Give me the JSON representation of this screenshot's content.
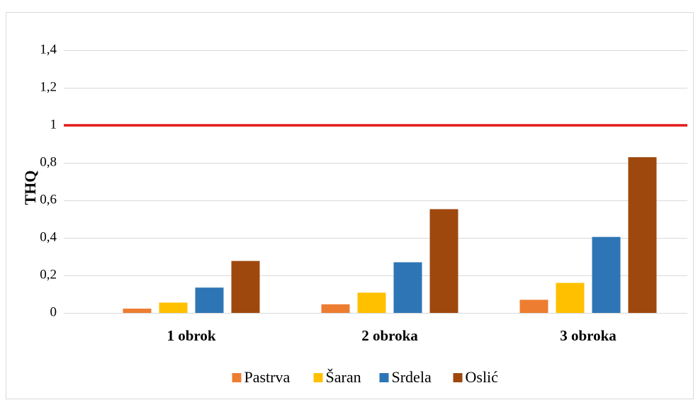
{
  "chart_data": {
    "type": "bar",
    "y_label": "THQ",
    "categories": [
      "1 obrok",
      "2 obroka",
      "3 obroka"
    ],
    "series": [
      {
        "name": "Pastrva",
        "color": "#ed7d31",
        "values": [
          0.023,
          0.046,
          0.07
        ]
      },
      {
        "name": "Šaran",
        "color": "#ffc000",
        "values": [
          0.055,
          0.108,
          0.16
        ]
      },
      {
        "name": "Srdela",
        "color": "#2e75b6",
        "values": [
          0.135,
          0.27,
          0.405
        ]
      },
      {
        "name": "Oslić",
        "color": "#9e480e",
        "values": [
          0.277,
          0.553,
          0.83
        ]
      }
    ],
    "ylim": [
      0,
      1.5
    ],
    "yticks": [
      0,
      {
        "value": 0.2,
        "label": "0,2"
      },
      {
        "value": 0.4,
        "label": "0,4"
      },
      {
        "value": 0.6,
        "label": "0,6"
      },
      {
        "value": 0.8,
        "label": "0,8"
      },
      1,
      {
        "value": 1.2,
        "label": "1,2"
      },
      {
        "value": 1.4,
        "label": "1,4"
      }
    ],
    "grid": true,
    "reference_line": {
      "value": 1,
      "color": "#e31a1c"
    },
    "legend": "bottom"
  }
}
